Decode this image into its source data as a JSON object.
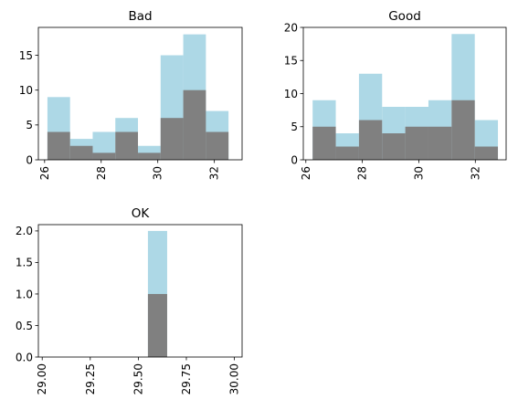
{
  "colors": {
    "back": "#add8e6",
    "front": "#808080",
    "axis": "#000000",
    "background": "#ffffff"
  },
  "chart_data": [
    {
      "type": "bar",
      "title": "Bad",
      "ylim": [
        0,
        19
      ],
      "xlim": [
        25.78,
        32.98
      ],
      "yticks": [
        0,
        5,
        10,
        15
      ],
      "xticks": [
        26,
        28,
        30,
        32
      ],
      "xtick_rotation": 90,
      "grid": false,
      "series": [
        {
          "color": "#add8e6",
          "bins": [
            {
              "x0": 26.1,
              "x1": 26.9,
              "value": 9
            },
            {
              "x0": 26.9,
              "x1": 27.7,
              "value": 3
            },
            {
              "x0": 27.7,
              "x1": 28.5,
              "value": 4
            },
            {
              "x0": 28.5,
              "x1": 29.3,
              "value": 6
            },
            {
              "x0": 29.3,
              "x1": 30.1,
              "value": 2
            },
            {
              "x0": 30.1,
              "x1": 30.9,
              "value": 15
            },
            {
              "x0": 30.9,
              "x1": 31.7,
              "value": 18
            },
            {
              "x0": 31.7,
              "x1": 32.5,
              "value": 7
            }
          ]
        },
        {
          "color": "#808080",
          "bins": [
            {
              "x0": 26.1,
              "x1": 26.9,
              "value": 4
            },
            {
              "x0": 26.9,
              "x1": 27.7,
              "value": 2
            },
            {
              "x0": 27.7,
              "x1": 28.5,
              "value": 1
            },
            {
              "x0": 28.5,
              "x1": 29.3,
              "value": 4
            },
            {
              "x0": 29.3,
              "x1": 30.1,
              "value": 1
            },
            {
              "x0": 30.1,
              "x1": 30.9,
              "value": 6
            },
            {
              "x0": 30.9,
              "x1": 31.7,
              "value": 10
            },
            {
              "x0": 31.7,
              "x1": 32.5,
              "value": 4
            }
          ]
        }
      ]
    },
    {
      "type": "bar",
      "title": "Good",
      "ylim": [
        0,
        20
      ],
      "xlim": [
        25.91,
        33.09
      ],
      "yticks": [
        0,
        5,
        10,
        15,
        20
      ],
      "xticks": [
        26,
        28,
        30,
        32
      ],
      "xtick_rotation": 90,
      "grid": false,
      "series": [
        {
          "color": "#add8e6",
          "bins": [
            {
              "x0": 26.24,
              "x1": 27.06,
              "value": 9
            },
            {
              "x0": 27.06,
              "x1": 27.88,
              "value": 4
            },
            {
              "x0": 27.88,
              "x1": 28.7,
              "value": 13
            },
            {
              "x0": 28.7,
              "x1": 29.52,
              "value": 8
            },
            {
              "x0": 29.52,
              "x1": 30.34,
              "value": 8
            },
            {
              "x0": 30.34,
              "x1": 31.16,
              "value": 9
            },
            {
              "x0": 31.16,
              "x1": 31.98,
              "value": 19
            },
            {
              "x0": 31.98,
              "x1": 32.8,
              "value": 6
            }
          ]
        },
        {
          "color": "#808080",
          "bins": [
            {
              "x0": 26.24,
              "x1": 27.06,
              "value": 5
            },
            {
              "x0": 27.06,
              "x1": 27.88,
              "value": 2
            },
            {
              "x0": 27.88,
              "x1": 28.7,
              "value": 6
            },
            {
              "x0": 28.7,
              "x1": 29.52,
              "value": 4
            },
            {
              "x0": 29.52,
              "x1": 30.34,
              "value": 5
            },
            {
              "x0": 30.34,
              "x1": 31.16,
              "value": 5
            },
            {
              "x0": 31.16,
              "x1": 31.98,
              "value": 9
            },
            {
              "x0": 31.98,
              "x1": 32.8,
              "value": 2
            }
          ]
        }
      ]
    },
    {
      "type": "bar",
      "title": "OK",
      "ylim": [
        0,
        2.1
      ],
      "xlim": [
        28.98,
        30.04
      ],
      "yticks": [
        0.0,
        0.5,
        1.0,
        1.5,
        2.0
      ],
      "ytick_labels": [
        "0.0",
        "0.5",
        "1.0",
        "1.5",
        "2.0"
      ],
      "xticks": [
        29.0,
        29.25,
        29.5,
        29.75,
        30.0
      ],
      "xtick_labels": [
        "29.00",
        "29.25",
        "29.50",
        "29.75",
        "30.00"
      ],
      "xtick_rotation": 90,
      "grid": false,
      "series": [
        {
          "color": "#add8e6",
          "bins": [
            {
              "x0": 29.55,
              "x1": 29.65,
              "value": 2
            }
          ]
        },
        {
          "color": "#808080",
          "bins": [
            {
              "x0": 29.55,
              "x1": 29.65,
              "value": 1
            }
          ]
        }
      ]
    }
  ]
}
